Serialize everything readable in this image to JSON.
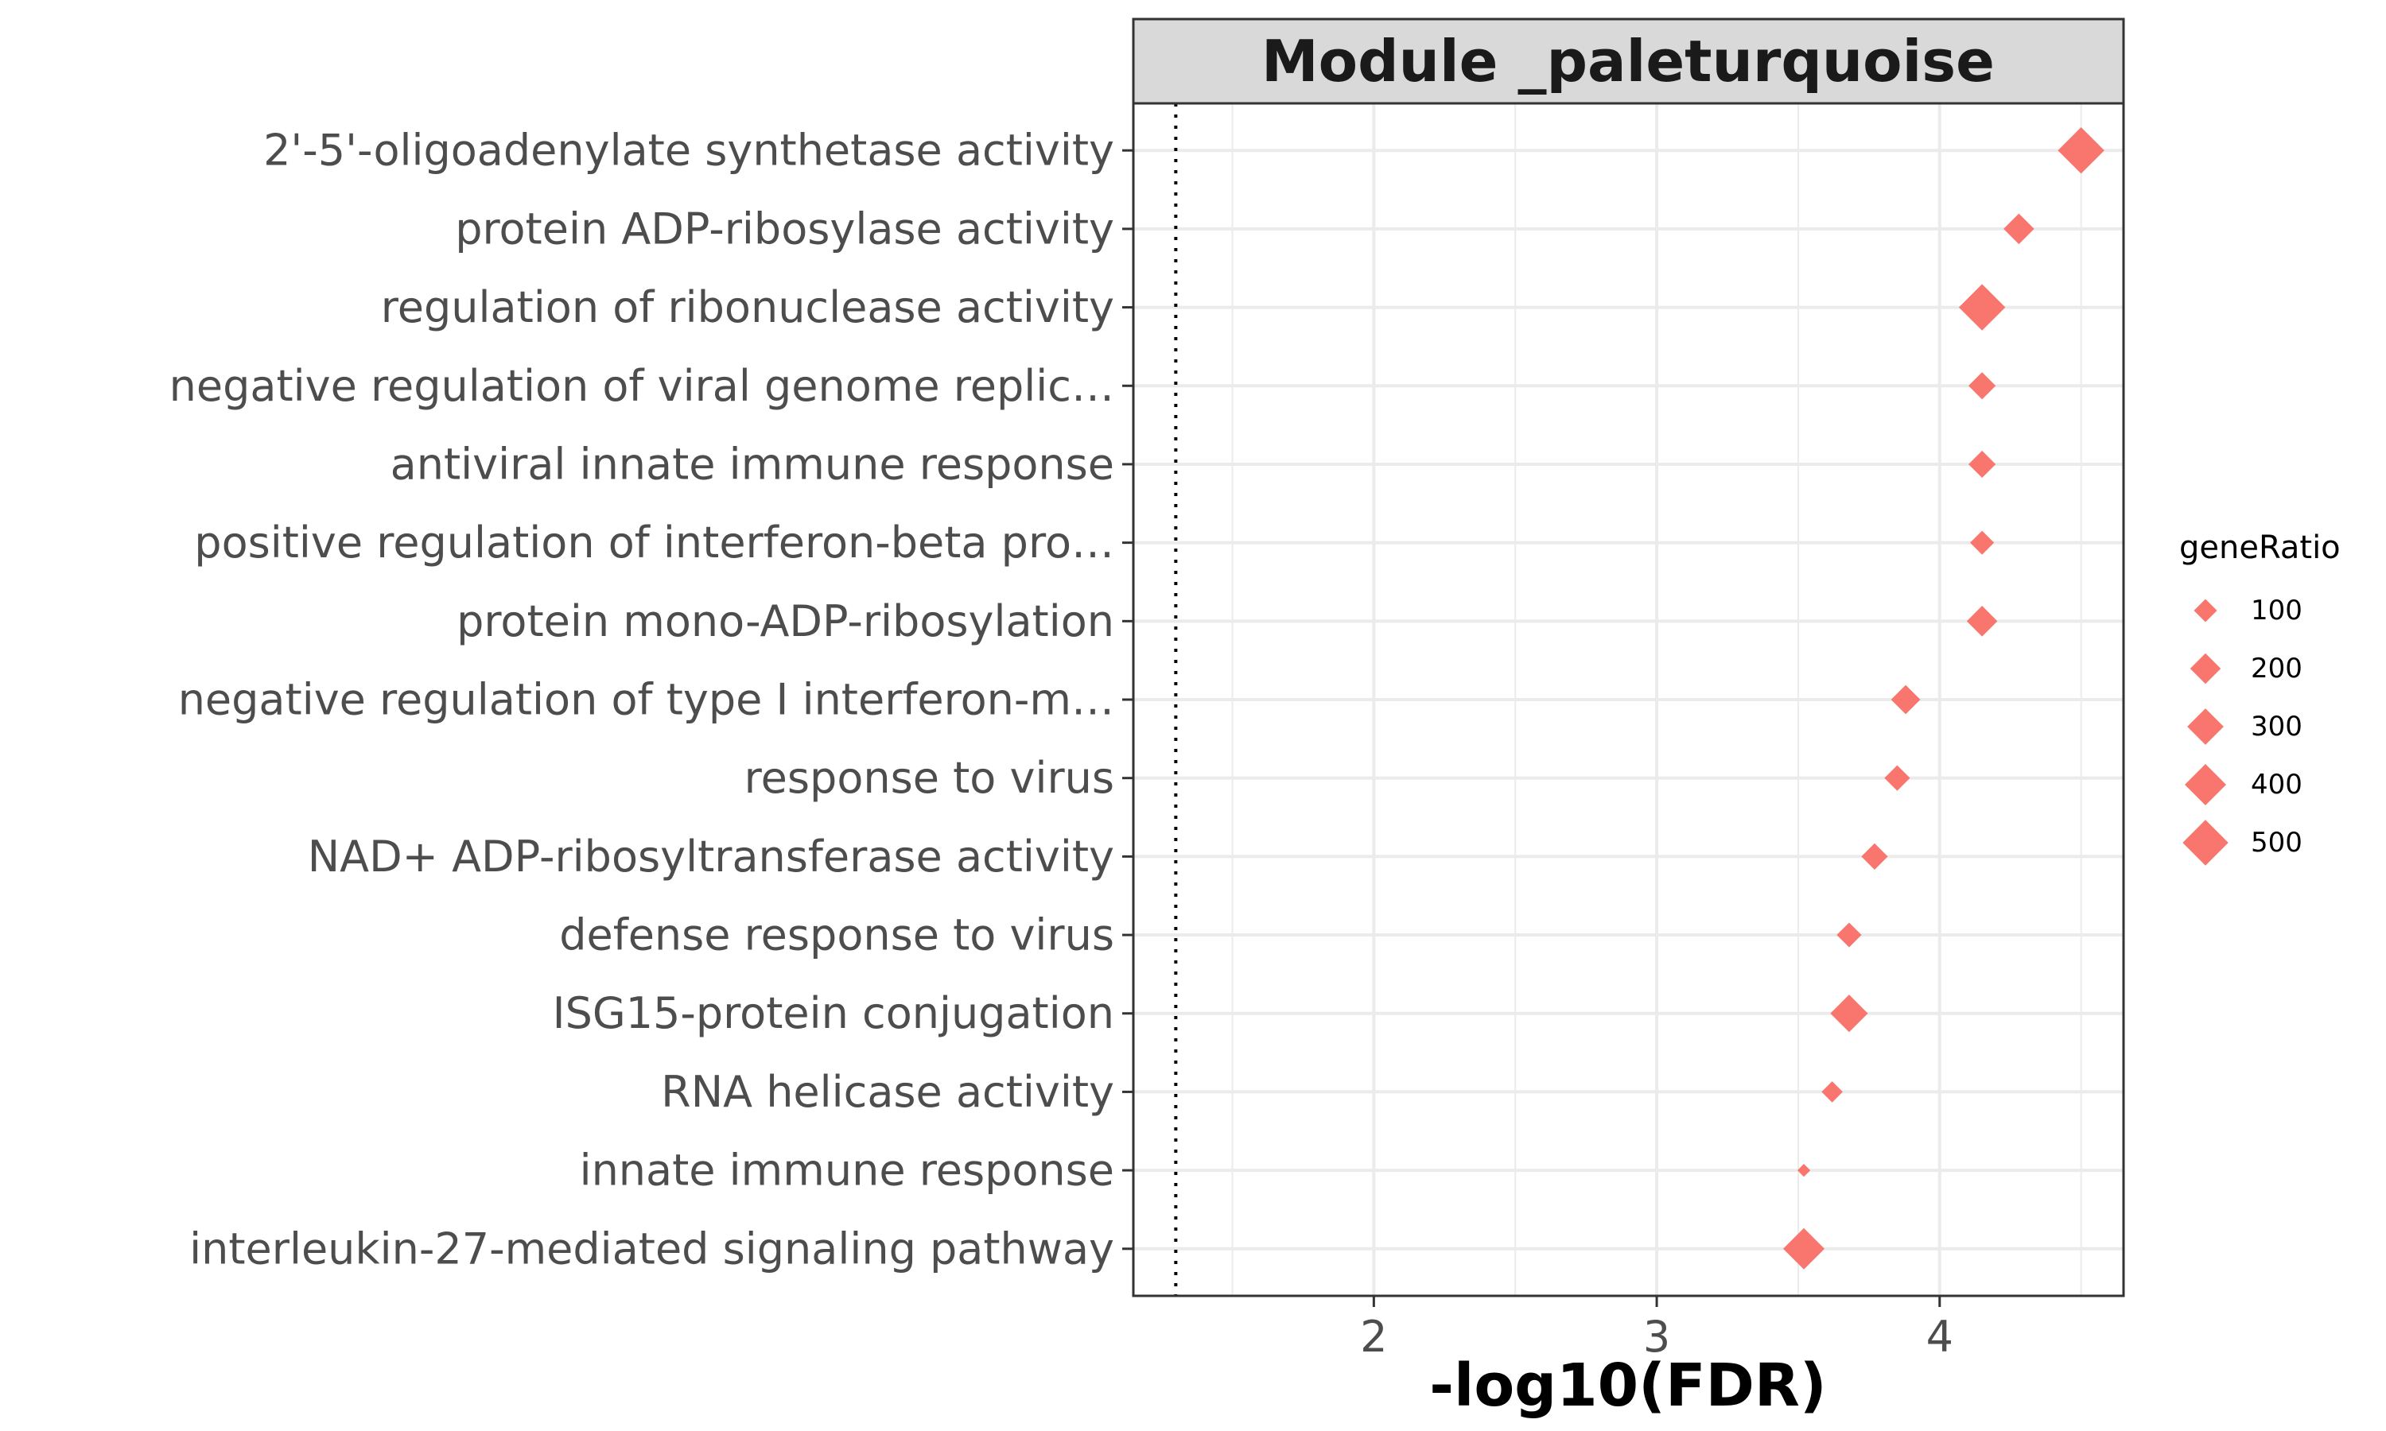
{
  "chart_data": {
    "type": "scatter",
    "title": "Module _paleturquoise",
    "xlabel": "-log10(FDR)",
    "ylabel": "",
    "xlim": [
      1.15,
      4.65
    ],
    "xticks": [
      2,
      3,
      4
    ],
    "threshold_x": 1.3,
    "threshold_style": "dotted",
    "marker": "diamond",
    "marker_color": "#F8766D",
    "grid": true,
    "legend_position": "right",
    "legend": {
      "title": "geneRatio",
      "entries": [
        {
          "label": "100",
          "value": 100
        },
        {
          "label": "200",
          "value": 200
        },
        {
          "label": "300",
          "value": 300
        },
        {
          "label": "400",
          "value": 400
        },
        {
          "label": "500",
          "value": 500
        }
      ]
    },
    "points": [
      {
        "term": "2'-5'-oligoadenylate synthetase activity",
        "x": 4.5,
        "geneRatio": 520
      },
      {
        "term": "protein ADP-ribosylase activity",
        "x": 4.28,
        "geneRatio": 200
      },
      {
        "term": "regulation of ribonuclease activity",
        "x": 4.15,
        "geneRatio": 520
      },
      {
        "term": "negative regulation of viral genome replic…",
        "x": 4.15,
        "geneRatio": 150
      },
      {
        "term": "antiviral innate immune response",
        "x": 4.15,
        "geneRatio": 150
      },
      {
        "term": "positive regulation of interferon-beta pro…",
        "x": 4.15,
        "geneRatio": 110
      },
      {
        "term": "protein mono-ADP-ribosylation",
        "x": 4.15,
        "geneRatio": 200
      },
      {
        "term": "negative regulation of type I interferon-m…",
        "x": 3.88,
        "geneRatio": 180
      },
      {
        "term": "response to virus",
        "x": 3.85,
        "geneRatio": 130
      },
      {
        "term": "NAD+ ADP-ribosyltransferase activity",
        "x": 3.77,
        "geneRatio": 140
      },
      {
        "term": "defense response to virus",
        "x": 3.68,
        "geneRatio": 120
      },
      {
        "term": "ISG15-protein conjugation",
        "x": 3.68,
        "geneRatio": 320
      },
      {
        "term": "RNA helicase activity",
        "x": 3.62,
        "geneRatio": 80
      },
      {
        "term": "innate immune response",
        "x": 3.52,
        "geneRatio": 20
      },
      {
        "term": "interleukin-27-mediated signaling pathway",
        "x": 3.52,
        "geneRatio": 400
      }
    ]
  }
}
